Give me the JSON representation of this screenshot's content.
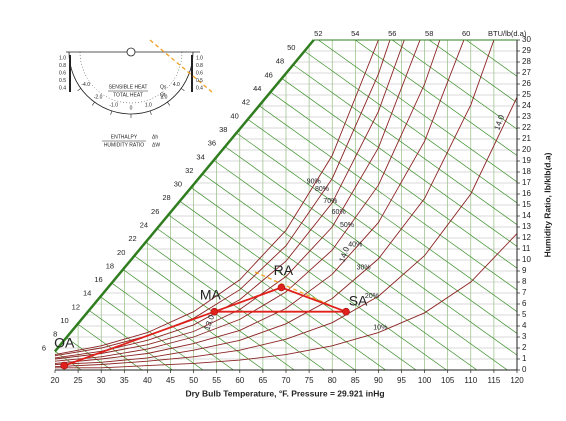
{
  "chart_data": {
    "type": "psychrometric",
    "xlabel": "Dry Bulb Temperature, °F. Pressure = 29.921 inHg",
    "ylabel": "Humidity Ratio, lb/klb(d.a)",
    "xlim": [
      20,
      120
    ],
    "xticks": [
      20,
      25,
      30,
      35,
      40,
      45,
      50,
      55,
      60,
      65,
      70,
      75,
      80,
      85,
      90,
      95,
      100,
      105,
      110,
      115,
      120
    ],
    "ylim": [
      0,
      30
    ],
    "yticks": [
      0,
      1,
      2,
      3,
      4,
      5,
      6,
      7,
      8,
      9,
      10,
      11,
      12,
      13,
      14,
      15,
      16,
      17,
      18,
      19,
      20,
      21,
      22,
      23,
      24,
      25,
      26,
      27,
      28,
      29,
      30
    ],
    "grid": true,
    "saturation": {
      "x": [
        20,
        76
      ],
      "values": [
        1.7,
        30
      ],
      "color": "#2f7d1f"
    },
    "enthalpy": {
      "label": "BTU/lb(d.a)",
      "color": "#3d8f2c",
      "values": [
        6,
        8,
        10,
        12,
        14,
        16,
        18,
        20,
        22,
        24,
        26,
        28,
        30,
        32,
        34,
        36,
        38,
        40,
        42,
        44,
        46,
        48,
        50,
        52,
        54,
        56,
        58,
        60
      ]
    },
    "rh_curves": [
      {
        "name": "90%",
        "color": "#8b2323",
        "x": [
          20,
          30,
          40,
          50,
          60,
          70,
          80,
          90
        ],
        "values": [
          1.4,
          2.2,
          3.4,
          5.3,
          8.2,
          12.7,
          19.5,
          30
        ]
      },
      {
        "name": "80%",
        "color": "#8b2323",
        "x": [
          20,
          30,
          40,
          50,
          60,
          70,
          80,
          90,
          92.5
        ],
        "values": [
          1.3,
          2.0,
          3.1,
          4.7,
          7.3,
          11.3,
          17.4,
          26.9,
          30
        ]
      },
      {
        "name": "70%",
        "color": "#8b2323",
        "x": [
          20,
          30,
          40,
          50,
          60,
          70,
          80,
          90,
          95.6
        ],
        "values": [
          1.1,
          1.7,
          2.7,
          4.1,
          6.4,
          9.9,
          15.2,
          23.5,
          30
        ]
      },
      {
        "name": "60%",
        "color": "#8b2323",
        "x": [
          20,
          30,
          40,
          50,
          60,
          70,
          80,
          90,
          99
        ],
        "values": [
          1.0,
          1.5,
          2.3,
          3.5,
          5.5,
          8.5,
          13.0,
          20.2,
          30
        ]
      },
      {
        "name": "50%",
        "color": "#8b2323",
        "x": [
          20,
          30,
          40,
          50,
          60,
          70,
          80,
          90,
          100,
          103.3
        ],
        "values": [
          0.8,
          1.2,
          1.9,
          3.0,
          4.6,
          7.1,
          10.9,
          16.8,
          26.0,
          30
        ]
      },
      {
        "name": "40%",
        "color": "#8b2323",
        "x": [
          20,
          30,
          40,
          50,
          60,
          70,
          80,
          90,
          100,
          108.5
        ],
        "values": [
          0.6,
          1.0,
          1.5,
          2.4,
          3.6,
          5.6,
          8.7,
          13.4,
          20.8,
          30
        ]
      },
      {
        "name": "30%",
        "color": "#8b2323",
        "x": [
          20,
          30,
          40,
          50,
          60,
          70,
          80,
          90,
          100,
          110,
          115
        ],
        "values": [
          0.5,
          0.7,
          1.1,
          1.8,
          2.7,
          4.2,
          6.5,
          10.1,
          15.6,
          24.1,
          30
        ]
      },
      {
        "name": "20%",
        "color": "#8b2323",
        "x": [
          20,
          30,
          40,
          50,
          60,
          70,
          80,
          90,
          100,
          110,
          120
        ],
        "values": [
          0.3,
          0.5,
          0.8,
          1.2,
          1.8,
          2.8,
          4.3,
          6.7,
          10.4,
          16.0,
          24.8
        ]
      },
      {
        "name": "10%",
        "color": "#8b2323",
        "x": [
          20,
          30,
          40,
          50,
          60,
          70,
          80,
          90,
          100,
          110,
          120
        ],
        "values": [
          0.2,
          0.2,
          0.4,
          0.6,
          0.9,
          1.4,
          2.2,
          3.4,
          5.2,
          8.0,
          12.4
        ]
      }
    ],
    "volume_labels": [
      "14.0",
      "14.0",
      "13.0"
    ],
    "points": {
      "color": "#e0201b",
      "names": [
        "OA",
        "MA",
        "RA",
        "SA"
      ],
      "x": [
        22,
        54.5,
        69,
        83
      ],
      "values": [
        0.4,
        5.3,
        7.5,
        5.3
      ]
    },
    "protractor": {
      "sensible": "SENSIBLE HEAT",
      "total": "TOTAL HEAT",
      "qs": "Qs",
      "qt": "Qt",
      "enthalpy": "ENTHALPY",
      "humidity": "HUMIDITY RATIO",
      "dh": "Δh",
      "dw": "ΔW",
      "shf_left": [
        "1.0",
        "0.8",
        "0.6",
        "0.5",
        "0.4"
      ],
      "shf_right": [
        "1.0",
        "0.8",
        "0.6",
        "0.5",
        "0.4"
      ],
      "arc_labels": [
        "-4.0",
        "-2.0",
        "-1.0",
        "0",
        "1.0",
        "2.0",
        "4.0"
      ]
    }
  }
}
